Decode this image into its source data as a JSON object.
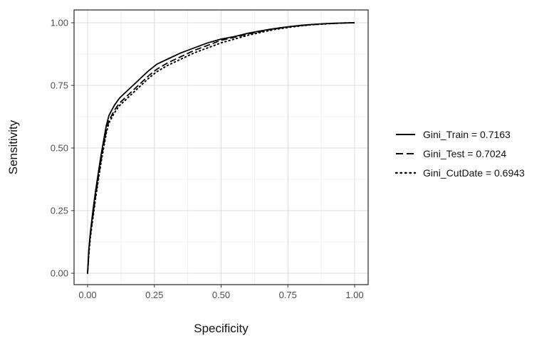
{
  "chart_data": {
    "type": "line",
    "title": "",
    "xlabel": "Specificity",
    "ylabel": "Sensitivity",
    "xlim": [
      0,
      1
    ],
    "ylim": [
      0,
      1
    ],
    "x_ticks": [
      "0.00",
      "0.25",
      "0.50",
      "0.75",
      "1.00"
    ],
    "y_ticks": [
      "0.00",
      "0.25",
      "0.50",
      "0.75",
      "1.00"
    ],
    "grid": true,
    "legend_position": "right",
    "series": [
      {
        "name": "Gini_Train = 0.7163",
        "line_style": "solid",
        "color": "#000000",
        "points": [
          [
            0,
            0
          ],
          [
            0.005,
            0.1
          ],
          [
            0.01,
            0.16
          ],
          [
            0.02,
            0.25
          ],
          [
            0.03,
            0.33
          ],
          [
            0.04,
            0.4
          ],
          [
            0.05,
            0.47
          ],
          [
            0.06,
            0.53
          ],
          [
            0.07,
            0.59
          ],
          [
            0.08,
            0.63
          ],
          [
            0.1,
            0.67
          ],
          [
            0.12,
            0.7
          ],
          [
            0.15,
            0.73
          ],
          [
            0.18,
            0.76
          ],
          [
            0.2,
            0.78
          ],
          [
            0.23,
            0.81
          ],
          [
            0.26,
            0.835
          ],
          [
            0.3,
            0.855
          ],
          [
            0.35,
            0.88
          ],
          [
            0.4,
            0.9
          ],
          [
            0.45,
            0.92
          ],
          [
            0.5,
            0.935
          ],
          [
            0.55,
            0.945
          ],
          [
            0.6,
            0.958
          ],
          [
            0.65,
            0.968
          ],
          [
            0.7,
            0.977
          ],
          [
            0.75,
            0.984
          ],
          [
            0.8,
            0.99
          ],
          [
            0.85,
            0.994
          ],
          [
            0.9,
            0.997
          ],
          [
            0.95,
            0.999
          ],
          [
            1,
            1
          ]
        ]
      },
      {
        "name": "Gini_Test = 0.7024",
        "line_style": "dashed",
        "color": "#000000",
        "points": [
          [
            0,
            0
          ],
          [
            0.005,
            0.09
          ],
          [
            0.01,
            0.15
          ],
          [
            0.02,
            0.23
          ],
          [
            0.03,
            0.31
          ],
          [
            0.04,
            0.38
          ],
          [
            0.05,
            0.45
          ],
          [
            0.06,
            0.51
          ],
          [
            0.07,
            0.57
          ],
          [
            0.08,
            0.61
          ],
          [
            0.1,
            0.65
          ],
          [
            0.12,
            0.68
          ],
          [
            0.15,
            0.71
          ],
          [
            0.18,
            0.74
          ],
          [
            0.2,
            0.76
          ],
          [
            0.23,
            0.79
          ],
          [
            0.26,
            0.815
          ],
          [
            0.3,
            0.84
          ],
          [
            0.35,
            0.865
          ],
          [
            0.4,
            0.89
          ],
          [
            0.45,
            0.91
          ],
          [
            0.5,
            0.93
          ],
          [
            0.55,
            0.942
          ],
          [
            0.6,
            0.955
          ],
          [
            0.65,
            0.966
          ],
          [
            0.7,
            0.976
          ],
          [
            0.75,
            0.983
          ],
          [
            0.8,
            0.989
          ],
          [
            0.85,
            0.993
          ],
          [
            0.9,
            0.997
          ],
          [
            0.95,
            0.999
          ],
          [
            1,
            1
          ]
        ]
      },
      {
        "name": "Gini_CutDate = 0.6943",
        "line_style": "dotted",
        "color": "#000000",
        "points": [
          [
            0,
            0
          ],
          [
            0.005,
            0.08
          ],
          [
            0.01,
            0.14
          ],
          [
            0.02,
            0.22
          ],
          [
            0.03,
            0.3
          ],
          [
            0.04,
            0.37
          ],
          [
            0.05,
            0.44
          ],
          [
            0.06,
            0.5
          ],
          [
            0.07,
            0.56
          ],
          [
            0.08,
            0.6
          ],
          [
            0.1,
            0.64
          ],
          [
            0.12,
            0.67
          ],
          [
            0.15,
            0.7
          ],
          [
            0.18,
            0.73
          ],
          [
            0.2,
            0.75
          ],
          [
            0.23,
            0.78
          ],
          [
            0.26,
            0.805
          ],
          [
            0.3,
            0.83
          ],
          [
            0.35,
            0.855
          ],
          [
            0.4,
            0.88
          ],
          [
            0.45,
            0.9
          ],
          [
            0.5,
            0.92
          ],
          [
            0.55,
            0.935
          ],
          [
            0.6,
            0.95
          ],
          [
            0.65,
            0.962
          ],
          [
            0.7,
            0.973
          ],
          [
            0.75,
            0.981
          ],
          [
            0.8,
            0.988
          ],
          [
            0.85,
            0.993
          ],
          [
            0.9,
            0.996
          ],
          [
            0.95,
            0.999
          ],
          [
            1,
            1
          ]
        ]
      }
    ]
  }
}
